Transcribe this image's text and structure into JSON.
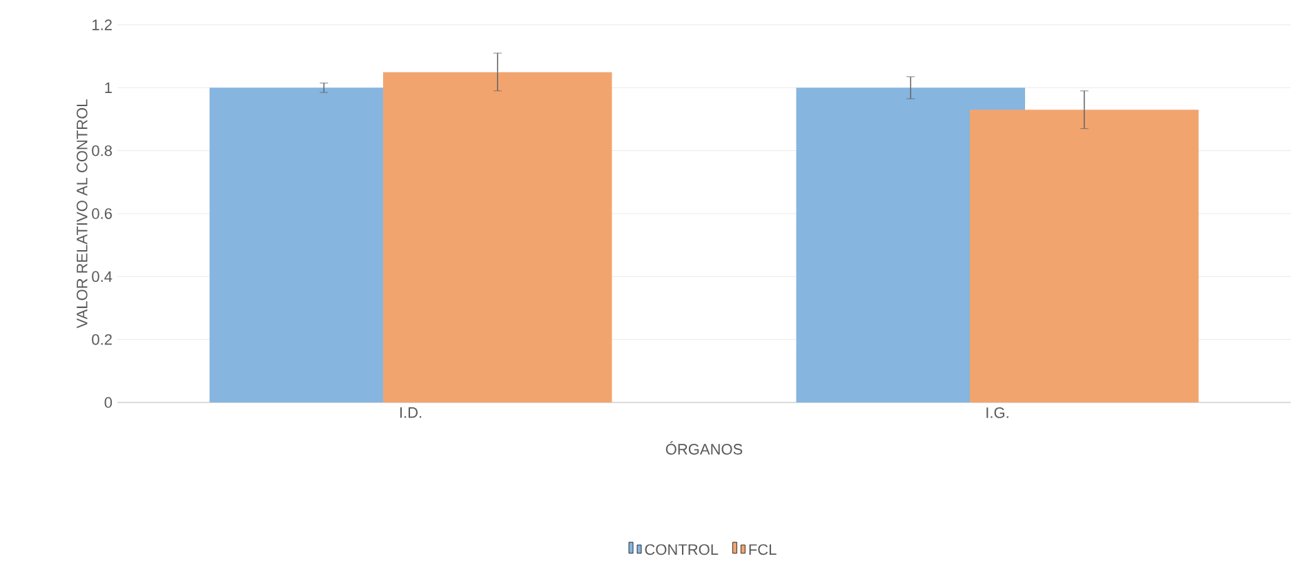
{
  "chart_data": {
    "type": "bar",
    "categories": [
      "I.D.",
      "I.G."
    ],
    "xlabel": "ÓRGANOS",
    "ylabel": "VALOR RELATIVO AL CONTROL",
    "series": [
      {
        "name": "CONTROL",
        "color": "#86b5e0",
        "values": [
          1.0,
          1.0
        ],
        "errors": [
          0.015,
          0.035
        ]
      },
      {
        "name": "FCL",
        "color": "#f2a46f",
        "values": [
          1.05,
          0.93
        ],
        "errors": [
          0.06,
          0.06
        ]
      }
    ],
    "ylim": [
      0,
      1.2
    ],
    "yticks": [
      0,
      0.2,
      0.4,
      0.6,
      0.8,
      1,
      1.2
    ],
    "grid": "y",
    "legend": "bottom"
  }
}
